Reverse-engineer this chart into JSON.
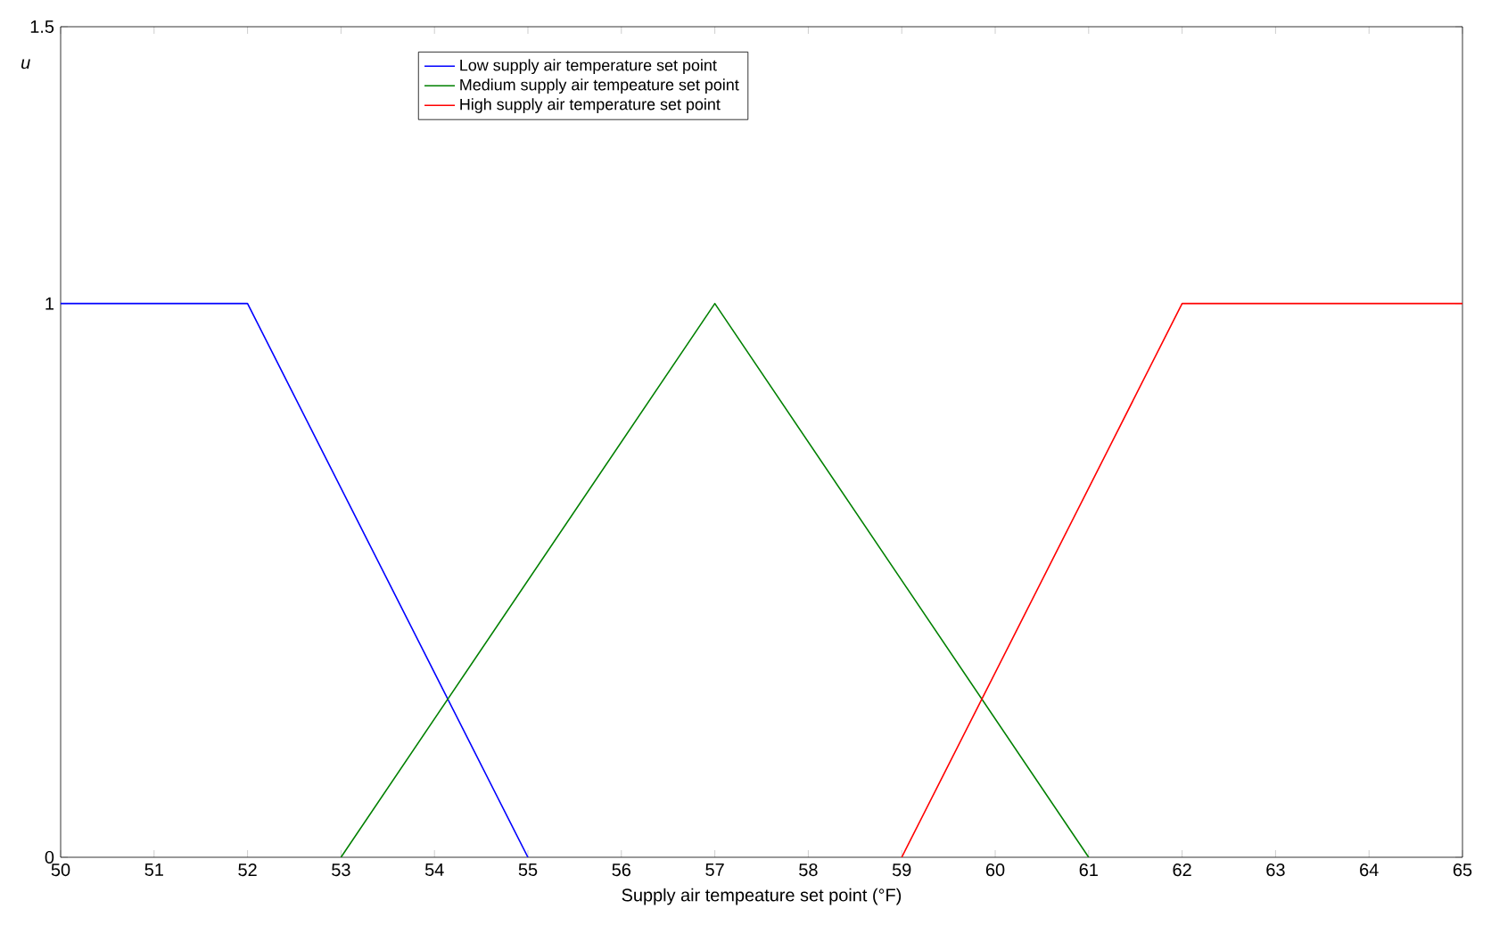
{
  "chart_data": {
    "type": "line",
    "xlabel": "Supply air tempeature set point (°F)",
    "ylabel": "*u*",
    "series": [
      {
        "name": "Low supply air temperature set point",
        "color": "#0000ff",
        "x": [
          50,
          52,
          55
        ],
        "values": [
          1,
          1,
          0
        ]
      },
      {
        "name": "Medium supply air tempeature set point",
        "color": "#008000",
        "x": [
          53,
          57,
          61
        ],
        "values": [
          0,
          1,
          0
        ]
      },
      {
        "name": "High supply air temperature set point",
        "color": "#ff0000",
        "x": [
          59,
          62,
          65
        ],
        "values": [
          0,
          1,
          1
        ]
      }
    ],
    "xlim": [
      50,
      65
    ],
    "xticks": [
      50,
      51,
      52,
      53,
      54,
      55,
      56,
      57,
      58,
      59,
      60,
      61,
      62,
      63,
      64,
      65
    ],
    "ylim": [
      0,
      1.5
    ],
    "yticks": [
      0,
      1,
      1.5
    ],
    "grid": false,
    "legend": "top",
    "marker": "none",
    "line_style": "solid"
  }
}
